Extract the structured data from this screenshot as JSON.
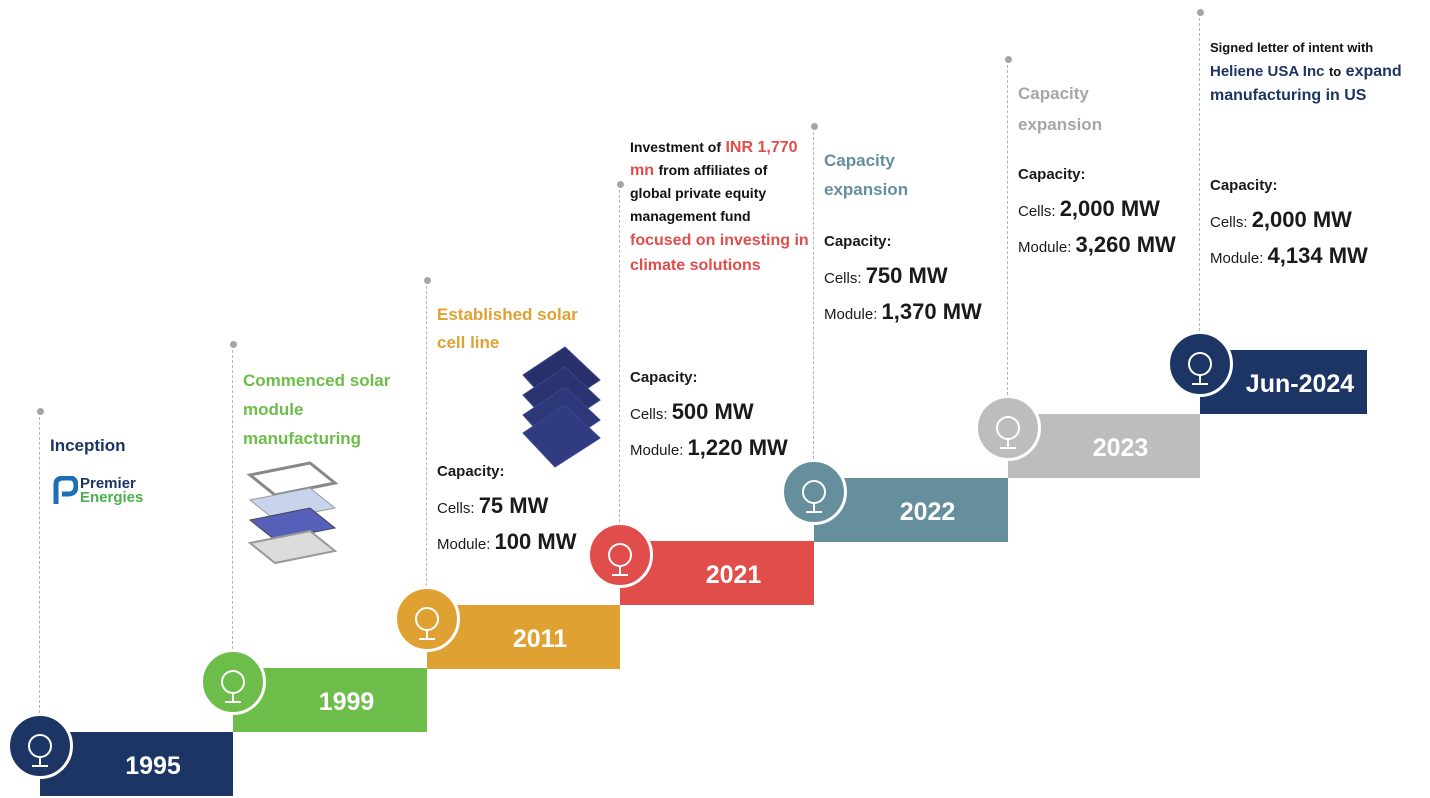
{
  "milestones": [
    {
      "year": "1995",
      "heading": [
        "Inception"
      ],
      "logo": [
        "Premier",
        "Energies"
      ]
    },
    {
      "year": "1999",
      "heading": [
        "Commenced solar module manufacturing"
      ]
    },
    {
      "year": "2011",
      "heading": [
        "Established solar cell line"
      ],
      "capacity": {
        "title": "Capacity:",
        "cells_label": "Cells:",
        "cells": "75 MW",
        "module_label": "Module:",
        "module": "100 MW"
      }
    },
    {
      "year": "2021",
      "heading": [
        "Investment of",
        "INR 1,770 mn",
        "from affiliates of global private equity management fund",
        "focused on investing in climate solutions"
      ],
      "capacity": {
        "title": "Capacity:",
        "cells_label": "Cells:",
        "cells": "500 MW",
        "module_label": "Module:",
        "module": "1,220 MW"
      }
    },
    {
      "year": "2022",
      "heading": [
        "Capacity expansion"
      ],
      "capacity": {
        "title": "Capacity:",
        "cells_label": "Cells:",
        "cells": "750 MW",
        "module_label": "Module:",
        "module": "1,370 MW"
      }
    },
    {
      "year": "2023",
      "heading": [
        "Capacity expansion"
      ],
      "capacity": {
        "title": "Capacity:",
        "cells_label": "Cells:",
        "cells": "2,000 MW",
        "module_label": "Module:",
        "module": "3,260 MW"
      }
    },
    {
      "year": "Jun-2024",
      "heading": [
        "Signed letter of intent with",
        "Heliene USA Inc",
        "to",
        "expand manufacturing in US"
      ],
      "capacity": {
        "title": "Capacity:",
        "cells_label": "Cells:",
        "cells": "2,000 MW",
        "module_label": "Module:",
        "module": "4,134 MW"
      }
    }
  ]
}
